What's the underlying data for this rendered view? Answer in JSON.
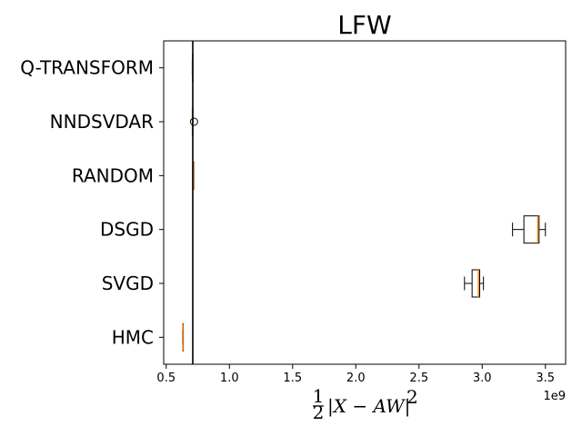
{
  "chart_data": {
    "type": "boxplot-horizontal",
    "title": "LFW",
    "xlabel_parts": {
      "frac_num": "1",
      "frac_den": "2",
      "expr": "|X − AW|",
      "sup": "2"
    },
    "x_offset_label": "1e9",
    "xlim": [
      0.48,
      3.66
    ],
    "xticks": [
      0.5,
      1.0,
      1.5,
      2.0,
      2.5,
      3.0,
      3.5
    ],
    "xtick_labels": [
      "0.5",
      "1.0",
      "1.5",
      "2.0",
      "2.5",
      "3.0",
      "3.5"
    ],
    "grid": false,
    "reference_line_x": 0.71,
    "categories": [
      "Q-TRANSFORM",
      "NNDSVDAR",
      "RANDOM",
      "DSGD",
      "SVGD",
      "HMC"
    ],
    "boxes": [
      {
        "name": "Q-TRANSFORM",
        "whislo": 0.706,
        "q1": 0.707,
        "med": 0.708,
        "q3": 0.709,
        "whishi": 0.71,
        "fliers": []
      },
      {
        "name": "NNDSVDAR",
        "whislo": 0.707,
        "q1": 0.707,
        "med": 0.707,
        "q3": 0.707,
        "whishi": 0.707,
        "fliers": [
          0.72
        ]
      },
      {
        "name": "RANDOM",
        "whislo": 0.713,
        "q1": 0.714,
        "med": 0.715,
        "q3": 0.716,
        "whishi": 0.717,
        "fliers": []
      },
      {
        "name": "DSGD",
        "whislo": 3.24,
        "q1": 3.33,
        "med": 3.44,
        "q3": 3.45,
        "whishi": 3.5,
        "fliers": []
      },
      {
        "name": "SVGD",
        "whislo": 2.86,
        "q1": 2.92,
        "med": 2.97,
        "q3": 2.98,
        "whishi": 3.01,
        "fliers": []
      },
      {
        "name": "HMC",
        "whislo": 0.63,
        "q1": 0.631,
        "med": 0.632,
        "q3": 0.633,
        "whishi": 0.634,
        "fliers": []
      }
    ],
    "colors": {
      "median": "#ff7f0e",
      "box": "#000000",
      "reference_line": "#000000"
    }
  }
}
